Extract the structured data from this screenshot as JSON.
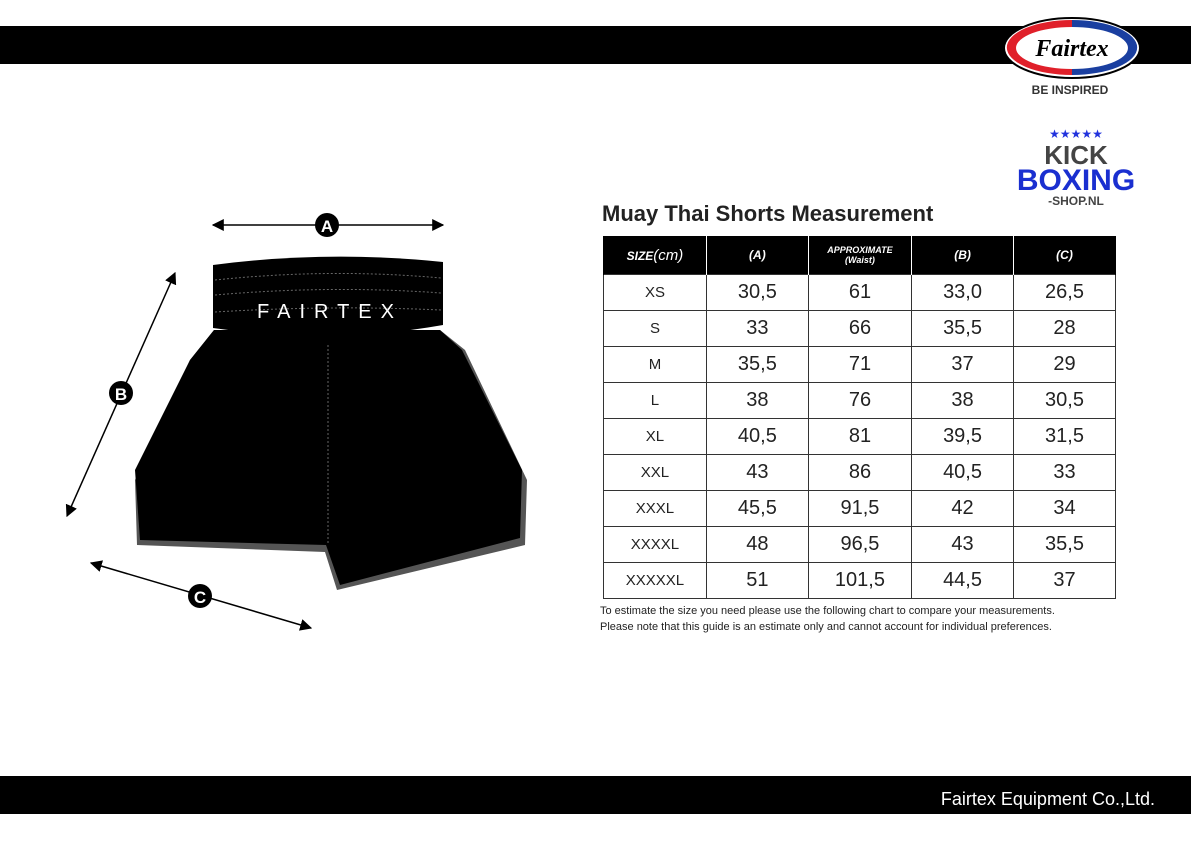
{
  "header": {
    "logo_text": "Fairtex",
    "tagline": "BE INSPIRED",
    "shop_logo": "KICK BOXING -SHOP.NL"
  },
  "diagram": {
    "waistband_text": "FAIRTEX",
    "labels": {
      "a": "A",
      "b": "B",
      "c": "C"
    }
  },
  "table": {
    "title": "Muay Thai Shorts Measurement",
    "headers": {
      "size": "SIZE",
      "size_unit": "(cm)",
      "a": "(A)",
      "approx": "APPROXIMATE",
      "waist": "(Waist)",
      "b": "(B)",
      "c": "(C)"
    },
    "rows": [
      [
        "XS",
        "30,5",
        "61",
        "33,0",
        "26,5"
      ],
      [
        "S",
        "33",
        "66",
        "35,5",
        "28"
      ],
      [
        "M",
        "35,5",
        "71",
        "37",
        "29"
      ],
      [
        "L",
        "38",
        "76",
        "38",
        "30,5"
      ],
      [
        "XL",
        "40,5",
        "81",
        "39,5",
        "31,5"
      ],
      [
        "XXL",
        "43",
        "86",
        "40,5",
        "33"
      ],
      [
        "XXXL",
        "45,5",
        "91,5",
        "42",
        "34"
      ],
      [
        "XXXXL",
        "48",
        "96,5",
        "43",
        "35,5"
      ],
      [
        "XXXXXL",
        "51",
        "101,5",
        "44,5",
        "37"
      ]
    ]
  },
  "notes": [
    "To estimate the size you need please use the following chart to compare your measurements.",
    "Please note that this guide is an estimate only and cannot account for individual preferences."
  ],
  "footer": {
    "company": "Fairtex Equipment Co.,Ltd."
  }
}
